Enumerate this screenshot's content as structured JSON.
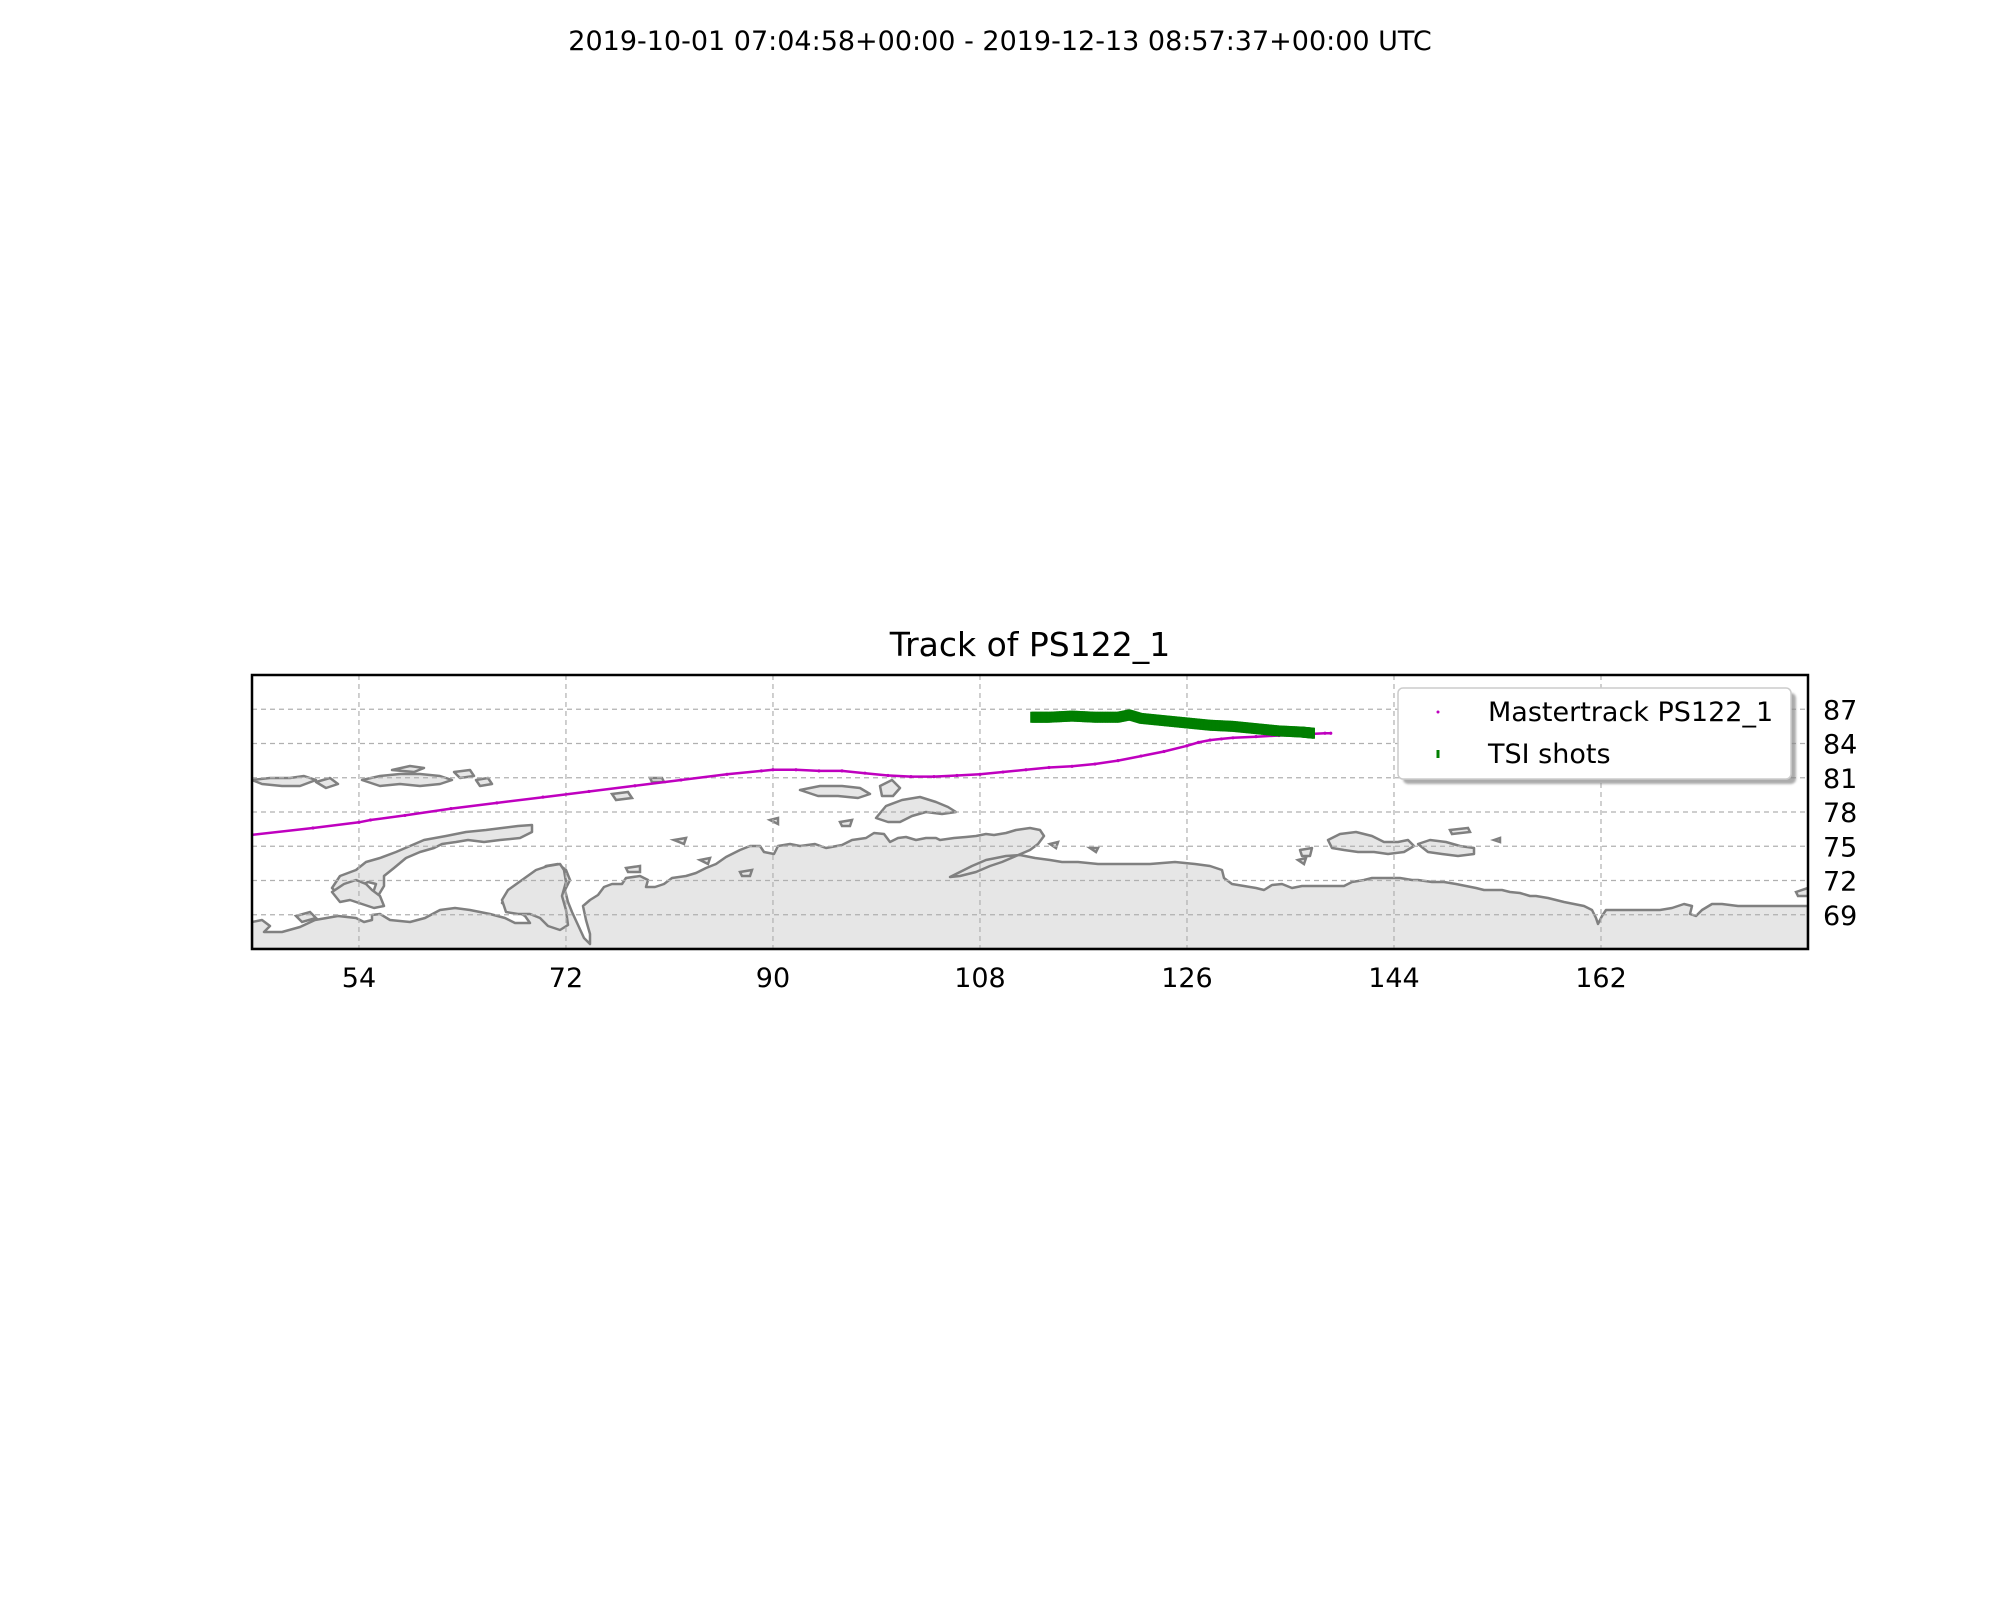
{
  "figure": {
    "suptitle": "2019-10-01 07:04:58+00:00 - 2019-12-13 08:57:37+00:00 UTC"
  },
  "chart_data": {
    "type": "scatter",
    "title": "Track of PS122_1",
    "projection": "plate carree map",
    "xlim": [
      44.7,
      180
    ],
    "ylim": [
      66,
      90
    ],
    "x_ticks": [
      54,
      72,
      90,
      108,
      126,
      144,
      162
    ],
    "y_ticks": [
      69,
      72,
      75,
      78,
      81,
      84,
      87
    ],
    "grid": true,
    "legend_position": "top-right",
    "colors": {
      "mastertrack": "#bf00bf",
      "tsi": "#007f00",
      "land_fill": "#e6e6e6",
      "coastline": "#808080",
      "grid": "#b0b0b0"
    },
    "series": [
      {
        "name": "Mastertrack PS122_1",
        "marker": "point",
        "lon": [
          44.7,
          50,
          54,
          55,
          58,
          62,
          66,
          70,
          74,
          78,
          82,
          86,
          89,
          90,
          92,
          94,
          96,
          98,
          100,
          102,
          104,
          106,
          108,
          110,
          112,
          114,
          116,
          118,
          120,
          122,
          124,
          126,
          127,
          128,
          129,
          130,
          132,
          134,
          136,
          138,
          138.5
        ],
        "lat": [
          76.0,
          76.6,
          77.1,
          77.3,
          77.7,
          78.3,
          78.8,
          79.3,
          79.8,
          80.3,
          80.8,
          81.3,
          81.6,
          81.7,
          81.7,
          81.6,
          81.6,
          81.4,
          81.2,
          81.1,
          81.1,
          81.2,
          81.3,
          81.5,
          81.7,
          81.9,
          82.0,
          82.2,
          82.5,
          82.9,
          83.3,
          83.8,
          84.1,
          84.3,
          84.4,
          84.5,
          84.6,
          84.7,
          84.8,
          84.9,
          84.9
        ]
      },
      {
        "name": "TSI shots",
        "marker": "vertical-tick",
        "lon": [
          112.5,
          114,
          116,
          118,
          120,
          121,
          122,
          124,
          126,
          128,
          130,
          132,
          134,
          136,
          137
        ],
        "lat": [
          86.3,
          86.3,
          86.4,
          86.3,
          86.3,
          86.5,
          86.2,
          86.0,
          85.8,
          85.6,
          85.5,
          85.3,
          85.1,
          85.0,
          84.9
        ]
      }
    ]
  }
}
